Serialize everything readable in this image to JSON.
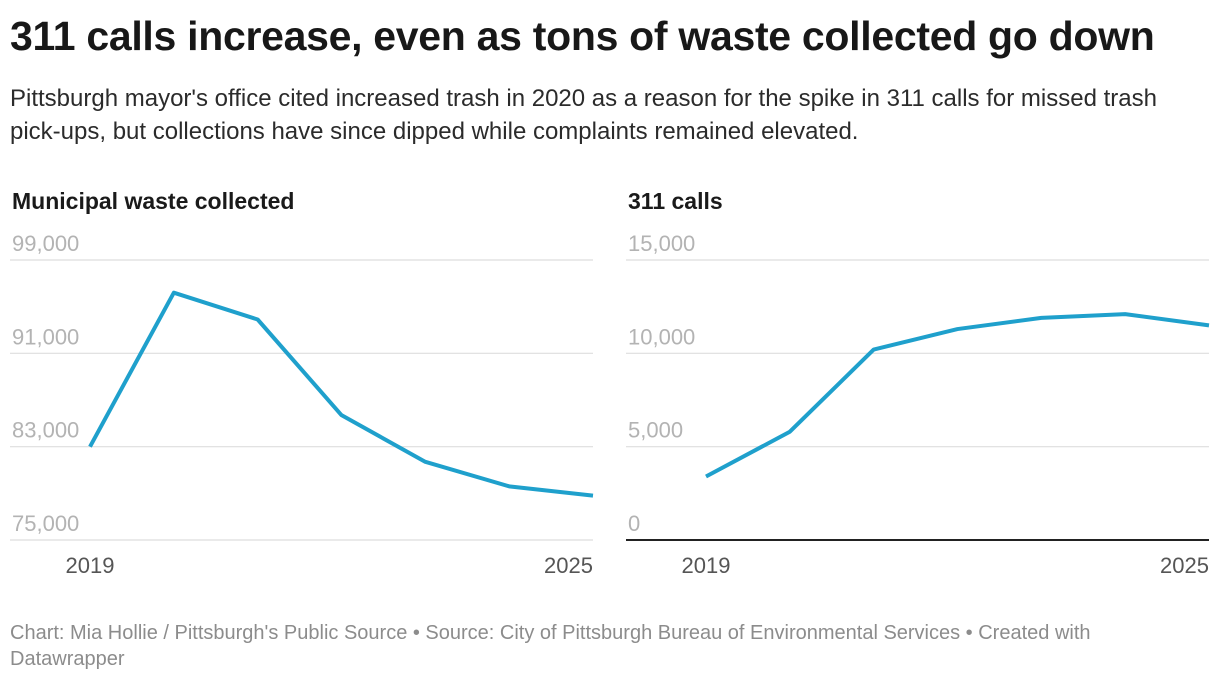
{
  "title": "311 calls increase, even as tons of waste collected go down",
  "subtitle": "Pittsburgh mayor's office cited increased trash in 2020 as a reason for the spike in 311 calls for missed trash pick-ups, but collections have since dipped while complaints remained elevated.",
  "footer": "Chart: Mia Hollie / Pittsburgh's Public Source • Source: City of Pittsburgh Bureau of Environmental Services • Created with Datawrapper",
  "colors": {
    "line": "#1fa0cc",
    "grid": "#dedede",
    "baseline": "#222222"
  },
  "chart_data": [
    {
      "type": "line",
      "title": "Municipal waste collected",
      "x": [
        2019,
        2020,
        2021,
        2022,
        2023,
        2024,
        2025
      ],
      "x_tick_labels": [
        "2019",
        "2025"
      ],
      "y_ticks": [
        75000,
        83000,
        91000,
        99000
      ],
      "y_tick_labels": [
        "75,000",
        "83,000",
        "91,000",
        "99,000"
      ],
      "ylim": [
        75000,
        99000
      ],
      "grid": true,
      "series": [
        {
          "values": [
            83000,
            96200,
            93900,
            85700,
            81700,
            79600,
            78800
          ]
        }
      ]
    },
    {
      "type": "line",
      "title": "311 calls",
      "x": [
        2019,
        2020,
        2021,
        2022,
        2023,
        2024,
        2025
      ],
      "x_tick_labels": [
        "2019",
        "2025"
      ],
      "y_ticks": [
        0,
        5000,
        10000,
        15000
      ],
      "y_tick_labels": [
        "0",
        "5,000",
        "10,000",
        "15,000"
      ],
      "ylim": [
        0,
        15000
      ],
      "grid": true,
      "series": [
        {
          "values": [
            3400,
            5800,
            10200,
            11300,
            11900,
            12100,
            11500
          ]
        }
      ]
    }
  ]
}
